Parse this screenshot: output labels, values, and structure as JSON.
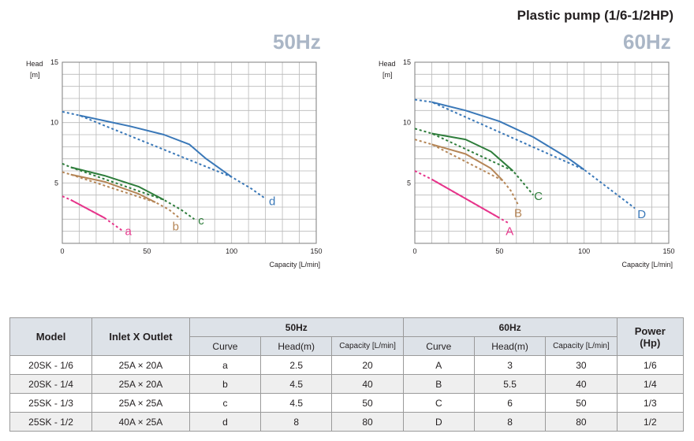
{
  "title": "Plastic pump (1/6-1/2HP)",
  "chart_data": [
    {
      "type": "line",
      "label": "50Hz",
      "ylabel_line1": "Head",
      "ylabel_line2": "[m]",
      "xlabel": "Capacity [L/min]",
      "xlim": [
        0,
        150
      ],
      "ylim": [
        0,
        15
      ],
      "xticks": [
        "0",
        "50",
        "100",
        "150"
      ],
      "yticks": [
        "5",
        "10",
        "15"
      ],
      "series": [
        {
          "name": "a",
          "color": "#e6358b",
          "solid": [
            [
              5,
              3.6
            ],
            [
              25,
              2.1
            ]
          ],
          "dashed": [
            [
              0,
              3.9
            ],
            [
              5,
              3.6
            ],
            [
              25,
              2.1
            ],
            [
              36,
              1.0
            ]
          ],
          "label_pos": [
            39,
            1.0
          ]
        },
        {
          "name": "b",
          "color": "#b58657",
          "solid": [
            [
              5,
              5.7
            ],
            [
              25,
              5.1
            ],
            [
              45,
              4.1
            ],
            [
              55,
              3.4
            ]
          ],
          "dashed": [
            [
              0,
              5.9
            ],
            [
              5,
              5.7
            ],
            [
              55,
              3.4
            ],
            [
              63,
              2.8
            ],
            [
              70,
              2.0
            ]
          ],
          "label_pos": [
            67,
            1.4
          ]
        },
        {
          "name": "c",
          "color": "#2e7d3b",
          "solid": [
            [
              5,
              6.3
            ],
            [
              25,
              5.6
            ],
            [
              45,
              4.7
            ],
            [
              60,
              3.6
            ]
          ],
          "dashed": [
            [
              0,
              6.6
            ],
            [
              5,
              6.3
            ],
            [
              60,
              3.6
            ],
            [
              70,
              2.8
            ],
            [
              78,
              2.0
            ]
          ],
          "label_pos": [
            82,
            1.9
          ]
        },
        {
          "name": "d",
          "color": "#3a78b8",
          "solid": [
            [
              10,
              10.6
            ],
            [
              40,
              9.7
            ],
            [
              60,
              9.0
            ],
            [
              75,
              8.2
            ],
            [
              85,
              7.0
            ],
            [
              100,
              5.5
            ]
          ],
          "dashed": [
            [
              0,
              10.9
            ],
            [
              10,
              10.6
            ],
            [
              100,
              5.5
            ],
            [
              112,
              4.5
            ],
            [
              120,
              3.7
            ]
          ],
          "label_pos": [
            124,
            3.5
          ]
        }
      ]
    },
    {
      "type": "line",
      "label": "60Hz",
      "ylabel_line1": "Head",
      "ylabel_line2": "[m]",
      "xlabel": "Capacity [L/min]",
      "xlim": [
        0,
        150
      ],
      "ylim": [
        0,
        15
      ],
      "xticks": [
        "0",
        "50",
        "100",
        "150"
      ],
      "yticks": [
        "5",
        "10",
        "15"
      ],
      "series": [
        {
          "name": "A",
          "color": "#e6358b",
          "solid": [
            [
              10,
              5.3
            ],
            [
              25,
              4.1
            ],
            [
              40,
              2.9
            ],
            [
              50,
              2.1
            ]
          ],
          "dashed": [
            [
              0,
              6.0
            ],
            [
              10,
              5.3
            ],
            [
              50,
              2.1
            ],
            [
              55,
              1.7
            ]
          ],
          "label_pos": [
            56,
            1.0
          ]
        },
        {
          "name": "B",
          "color": "#b58657",
          "solid": [
            [
              10,
              8.2
            ],
            [
              30,
              7.4
            ],
            [
              45,
              6.2
            ],
            [
              52,
              5.2
            ]
          ],
          "dashed": [
            [
              0,
              8.6
            ],
            [
              10,
              8.2
            ],
            [
              52,
              5.2
            ],
            [
              57,
              4.3
            ],
            [
              61,
              3.2
            ]
          ],
          "label_pos": [
            61,
            2.5
          ]
        },
        {
          "name": "C",
          "color": "#2e7d3b",
          "solid": [
            [
              10,
              9.1
            ],
            [
              30,
              8.6
            ],
            [
              45,
              7.6
            ],
            [
              58,
              6.0
            ]
          ],
          "dashed": [
            [
              0,
              9.5
            ],
            [
              10,
              9.1
            ],
            [
              58,
              6.0
            ],
            [
              64,
              5.0
            ],
            [
              70,
              4.0
            ]
          ],
          "label_pos": [
            73,
            3.9
          ]
        },
        {
          "name": "D",
          "color": "#3a78b8",
          "solid": [
            [
              10,
              11.7
            ],
            [
              30,
              11.0
            ],
            [
              50,
              10.1
            ],
            [
              70,
              8.8
            ],
            [
              90,
              7.1
            ],
            [
              100,
              6.1
            ]
          ],
          "dashed": [
            [
              0,
              11.9
            ],
            [
              10,
              11.7
            ],
            [
              100,
              6.1
            ],
            [
              115,
              4.5
            ],
            [
              130,
              2.9
            ]
          ],
          "label_pos": [
            134,
            2.4
          ]
        }
      ]
    }
  ],
  "table": {
    "header": {
      "model": "Model",
      "inlet": "Inlet X Outlet",
      "hz50": "50Hz",
      "hz60": "60Hz",
      "power_line1": "Power",
      "power_line2": "(Hp)",
      "curve": "Curve",
      "head": "Head(m)",
      "capacity": "Capacity [L/min]"
    },
    "rows": [
      {
        "model": "20SK - 1/6",
        "inlet": "25A  × 20A",
        "c50": "a",
        "h50": "2.5",
        "q50": "20",
        "c60": "A",
        "h60": "3",
        "q60": "30",
        "power": "1/6"
      },
      {
        "model": "20SK - 1/4",
        "inlet": "25A  × 20A",
        "c50": "b",
        "h50": "4.5",
        "q50": "40",
        "c60": "B",
        "h60": "5.5",
        "q60": "40",
        "power": "1/4"
      },
      {
        "model": "25SK - 1/3",
        "inlet": "25A  × 25A",
        "c50": "c",
        "h50": "4.5",
        "q50": "50",
        "c60": "C",
        "h60": "6",
        "q60": "50",
        "power": "1/3"
      },
      {
        "model": "25SK - 1/2",
        "inlet": "40A  × 25A",
        "c50": "d",
        "h50": "8",
        "q50": "80",
        "c60": "D",
        "h60": "8",
        "q60": "80",
        "power": "1/2"
      }
    ]
  }
}
